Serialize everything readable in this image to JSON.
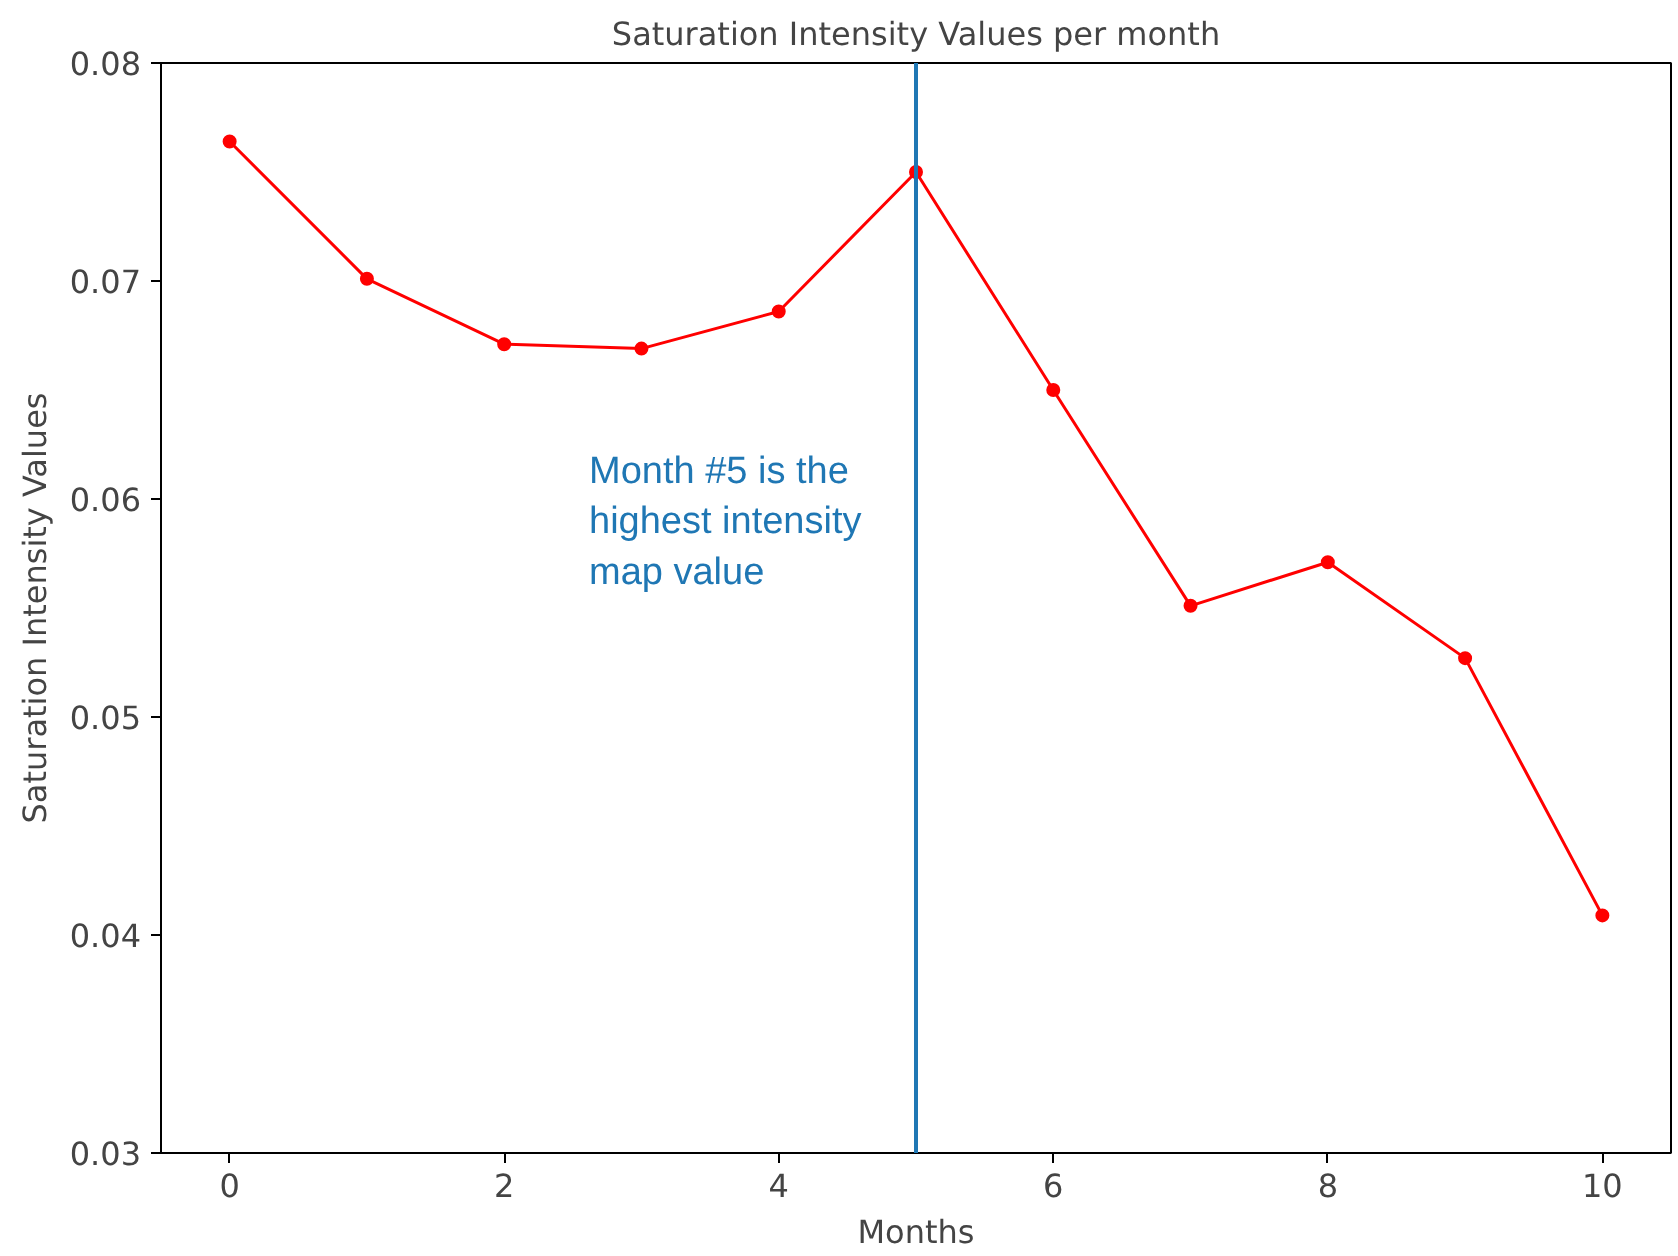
{
  "chart_data": {
    "type": "line",
    "title": "Saturation Intensity Values per month",
    "xlabel": "Months",
    "ylabel": "Saturation Intensity Values",
    "x": [
      0,
      1,
      2,
      3,
      4,
      5,
      6,
      7,
      8,
      9,
      10
    ],
    "series": [
      {
        "color": "#ff0000",
        "values": [
          0.0764,
          0.0701,
          0.0671,
          0.0669,
          0.0686,
          0.075,
          0.065,
          0.0551,
          0.0571,
          0.0527,
          0.0409
        ]
      }
    ],
    "xlim": [
      -0.5,
      10.5
    ],
    "ylim": [
      0.03,
      0.08
    ],
    "xticks": [
      0,
      2,
      4,
      6,
      8,
      10
    ],
    "yticks": [
      0.03,
      0.04,
      0.05,
      0.06,
      0.07,
      0.08
    ],
    "ref_lines": [
      {
        "axis": "x",
        "value": 5,
        "color": "#1f77b4"
      }
    ],
    "annotations": [
      "Month #5 is the highest intensity map value"
    ],
    "grid": false,
    "marker": "circle",
    "line_style": "solid"
  }
}
